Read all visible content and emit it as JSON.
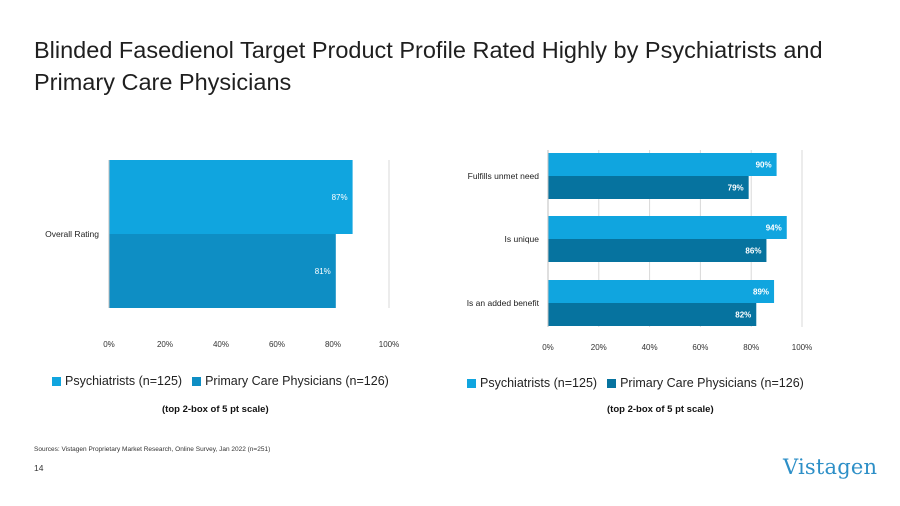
{
  "title": "Blinded Fasedienol Target Product Profile Rated Highly by Psychiatrists and Primary Care Physicians",
  "colors": {
    "psychiatrists": "#10a5df",
    "pcp_left": "#0e8ec4",
    "pcp_right": "#06739f",
    "grid": "#d9d9d9"
  },
  "chart_data": [
    {
      "type": "bar",
      "orientation": "horizontal",
      "categories": [
        "Overall Rating"
      ],
      "series": [
        {
          "name": "Psychiatrists (n=125)",
          "values": [
            87
          ],
          "labels": [
            "87%"
          ]
        },
        {
          "name": "Primary Care Physicians (n=126)",
          "values": [
            81
          ],
          "labels": [
            "81%"
          ]
        }
      ],
      "xlim": [
        0,
        100
      ],
      "xticks": [
        "0%",
        "20%",
        "40%",
        "60%",
        "80%",
        "100%"
      ],
      "grid": true,
      "legend": "bottom",
      "note": "(top 2-box of 5 pt scale)"
    },
    {
      "type": "bar",
      "orientation": "horizontal",
      "categories": [
        "Fulfills unmet need",
        "Is unique",
        "Is an added benefit"
      ],
      "series": [
        {
          "name": "Psychiatrists (n=125)",
          "values": [
            90,
            94,
            89
          ],
          "labels": [
            "90%",
            "94%",
            "89%"
          ]
        },
        {
          "name": "Primary Care Physicians (n=126)",
          "values": [
            79,
            86,
            82
          ],
          "labels": [
            "79%",
            "86%",
            "82%"
          ]
        }
      ],
      "xlim": [
        0,
        100
      ],
      "xticks": [
        "0%",
        "20%",
        "40%",
        "60%",
        "80%",
        "100%"
      ],
      "grid": true,
      "legend": "bottom",
      "note": "(top 2-box of 5 pt scale)"
    }
  ],
  "source": "Sources: Vistagen Proprietary Market Research, Online Survey, Jan 2022 (n=251)",
  "page_number": "14",
  "logo": "Vistagen"
}
